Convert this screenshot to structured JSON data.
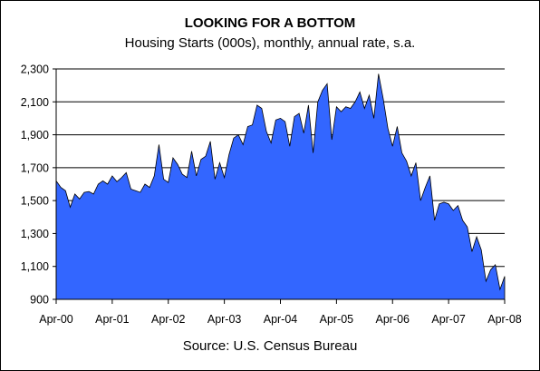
{
  "chart_data": {
    "type": "area",
    "title": "LOOKING FOR A BOTTOM",
    "subtitle": "Housing Starts (000s), monthly, annual rate, s.a.",
    "source": "Source: U.S. Census Bureau",
    "xlabel": "",
    "ylabel": "",
    "ylim": [
      900,
      2300
    ],
    "yticks": [
      900,
      1100,
      1300,
      1500,
      1700,
      1900,
      2100,
      2300
    ],
    "ytick_labels": [
      "900",
      "1,100",
      "1,300",
      "1,500",
      "1,700",
      "1,900",
      "2,100",
      "2,300"
    ],
    "xticks": [
      "Apr-00",
      "Apr-01",
      "Apr-02",
      "Apr-03",
      "Apr-04",
      "Apr-05",
      "Apr-06",
      "Apr-07",
      "Apr-08"
    ],
    "grid": "horizontal",
    "fill_color": "#3366ff",
    "series": [
      {
        "start": "Apr-00",
        "frequency": "monthly",
        "values": [
          1620,
          1580,
          1560,
          1460,
          1540,
          1510,
          1550,
          1555,
          1540,
          1600,
          1620,
          1600,
          1650,
          1615,
          1640,
          1670,
          1570,
          1560,
          1550,
          1600,
          1580,
          1650,
          1840,
          1630,
          1610,
          1760,
          1720,
          1660,
          1640,
          1800,
          1650,
          1750,
          1770,
          1860,
          1630,
          1730,
          1640,
          1780,
          1880,
          1900,
          1840,
          1950,
          1960,
          2080,
          2060,
          1920,
          1850,
          1990,
          2000,
          1980,
          1830,
          2010,
          2030,
          1910,
          2080,
          1790,
          2100,
          2170,
          2210,
          1870,
          2070,
          2040,
          2070,
          2060,
          2100,
          2160,
          2060,
          2140,
          2000,
          2270,
          2120,
          1940,
          1830,
          1950,
          1790,
          1740,
          1650,
          1730,
          1500,
          1580,
          1650,
          1380,
          1480,
          1490,
          1480,
          1440,
          1470,
          1380,
          1340,
          1190,
          1280,
          1200,
          1010,
          1080,
          1110,
          960,
          1040
        ]
      }
    ]
  }
}
